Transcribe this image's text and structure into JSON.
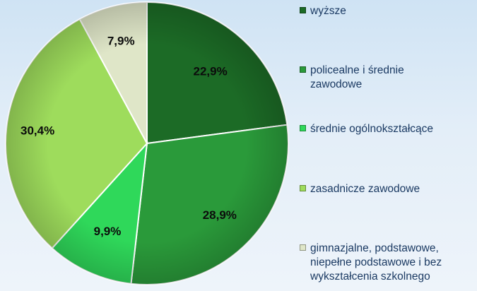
{
  "chart_data": {
    "type": "pie",
    "categories": [
      "wyższe",
      "policealne i średnie zawodowe",
      "średnie ogólnokształcące",
      "zasadnicze zawodowe",
      "gimnazjalne, podstawowe, niepełne podstawowe i bez wykształcenia szkolnego"
    ],
    "values": [
      22.9,
      28.9,
      9.9,
      30.4,
      7.9
    ],
    "labels": [
      "22,9%",
      "28,9%",
      "9,9%",
      "30,4%",
      "7,9%"
    ],
    "colors": [
      "#1c6b26",
      "#2a9a3a",
      "#2fd85a",
      "#9edc5c",
      "#dfe6c8"
    ],
    "legend_position": "right",
    "start_angle": "12 o'clock, clockwise"
  },
  "legend": {
    "items": [
      {
        "lines": [
          "wyższe"
        ],
        "color": "#1c6b26"
      },
      {
        "lines": [
          "policealne i średnie",
          "zawodowe"
        ],
        "color": "#2a9a3a"
      },
      {
        "lines": [
          "średnie ogólnokształcące"
        ],
        "color": "#2fd85a"
      },
      {
        "lines": [
          "zasadnicze zawodowe"
        ],
        "color": "#9edc5c"
      },
      {
        "lines": [
          "gimnazjalne, podstawowe,",
          "niepełne podstawowe i bez",
          "wykształcenia szkolnego"
        ],
        "color": "#dfe6c8"
      }
    ]
  }
}
